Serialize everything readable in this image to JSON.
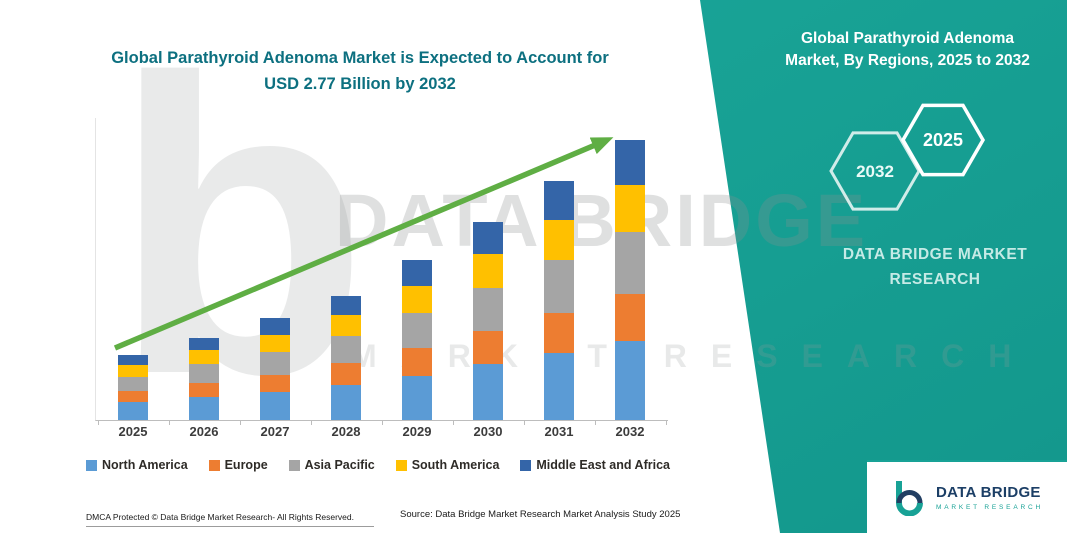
{
  "header": {
    "chart_title_line1": "Global Parathyroid Adenoma Market is Expected to Account for",
    "chart_title_line2": "USD 2.77 Billion by 2032"
  },
  "right_panel": {
    "title_line1": "Global Parathyroid Adenoma",
    "title_line2": "Market, By Regions, 2025 to 2032",
    "hexagon_2032": "2032",
    "hexagon_2025": "2025",
    "brand_line1": "DATA BRIDGE MARKET",
    "brand_line2": "RESEARCH",
    "accent_color": "#18a296"
  },
  "watermark": {
    "big_letter": "b",
    "line1": "DATA BRIDGE",
    "line2": "MARKET RESEARCH"
  },
  "footer": {
    "dmca": "DMCA Protected © Data Bridge Market Research-  All Rights Reserved.",
    "source": "Source: Data Bridge Market Research  Market Analysis Study 2025"
  },
  "logo": {
    "name_line": "DATA BRIDGE",
    "sub_line": "MARKET RESEARCH"
  },
  "chart_data": {
    "type": "bar",
    "stacked": true,
    "title": "Global Parathyroid Adenoma Market is Expected to Account for USD 2.77 Billion by 2032",
    "unit": "USD Billion (estimated from chart)",
    "total_2032": 2.77,
    "arrow_color": "#5fae44",
    "categories": [
      "2025",
      "2026",
      "2027",
      "2028",
      "2029",
      "2030",
      "2031",
      "2032"
    ],
    "series": [
      {
        "name": "North America",
        "color": "#5B9BD5",
        "values": [
          0.18,
          0.23,
          0.28,
          0.35,
          0.44,
          0.55,
          0.66,
          0.78
        ]
      },
      {
        "name": "Europe",
        "color": "#ED7D31",
        "values": [
          0.11,
          0.14,
          0.17,
          0.21,
          0.27,
          0.33,
          0.4,
          0.47
        ]
      },
      {
        "name": "Asia Pacific",
        "color": "#A5A5A5",
        "values": [
          0.14,
          0.18,
          0.22,
          0.27,
          0.35,
          0.43,
          0.52,
          0.61
        ]
      },
      {
        "name": "South America",
        "color": "#FFC000",
        "values": [
          0.11,
          0.14,
          0.17,
          0.21,
          0.27,
          0.33,
          0.4,
          0.47
        ]
      },
      {
        "name": "Middle East and Africa",
        "color": "#3465A8",
        "values": [
          0.1,
          0.12,
          0.17,
          0.19,
          0.25,
          0.32,
          0.39,
          0.44
        ]
      }
    ],
    "legend_position": "bottom",
    "grid": false,
    "ylim": [
      0,
      3
    ]
  }
}
